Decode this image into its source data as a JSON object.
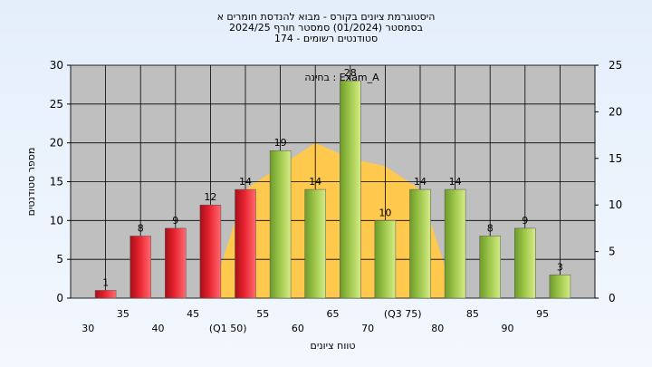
{
  "chart_data": {
    "type": "bar",
    "title_lines": [
      "היסטוגרמת ציונים בקורס - מבוא להנדסת חומרים א",
      "בסמסטר (01/2024) סמסטר חורף 2024/25",
      "סטודנטים רשומים - 174"
    ],
    "subtitle": "בחינה : Exam_A",
    "xlabel": "טווח ציונים",
    "ylabel": "מספר סטודנטים",
    "ylim": [
      0,
      30
    ],
    "y_ticks": [
      0,
      5,
      10,
      15,
      20,
      25,
      30
    ],
    "y2lim": [
      0,
      25
    ],
    "y2_ticks": [
      0,
      5,
      10,
      15,
      20,
      25
    ],
    "x_tick_labels": [
      "30",
      "35",
      "40",
      "45",
      "(Q1 50)",
      "55",
      "60",
      "65",
      "70",
      "(Q3 75)",
      "80",
      "85",
      "90",
      "95"
    ],
    "values": [
      1,
      8,
      9,
      12,
      14,
      19,
      14,
      28,
      10,
      14,
      14,
      8,
      9,
      3
    ],
    "bar_colors": [
      "red",
      "red",
      "red",
      "red",
      "red",
      "green",
      "green",
      "green",
      "green",
      "green",
      "green",
      "green",
      "green",
      "green"
    ],
    "distribution_curve": [
      0,
      0,
      0,
      0,
      14,
      17,
      20,
      18,
      17,
      14,
      0,
      0,
      0,
      0
    ],
    "grid": true,
    "colors": {
      "red_bar": "#e8232f",
      "green_bar": "#9bc548",
      "area": "#ffc94d",
      "plot_bg": "#bfbfbf"
    }
  }
}
